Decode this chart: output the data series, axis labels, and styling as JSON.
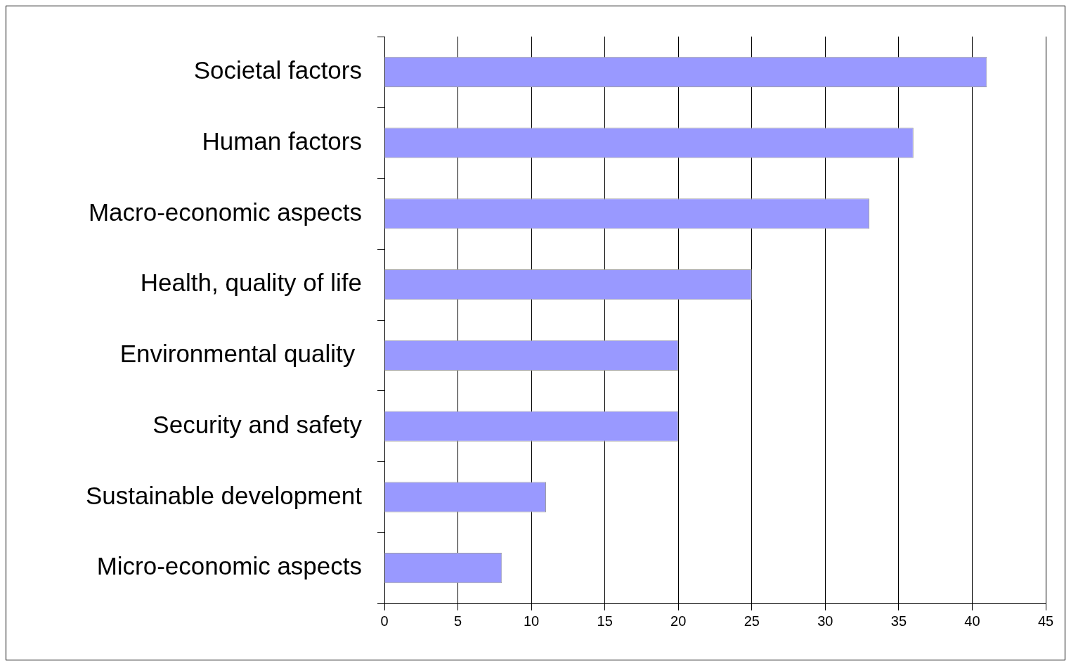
{
  "chart_data": {
    "type": "bar",
    "orientation": "horizontal",
    "categories": [
      "Societal factors",
      "Human factors",
      "Macro-economic aspects",
      "Health, quality of life",
      "Environmental quality ",
      "Security and safety",
      "Sustainable development",
      "Micro-economic aspects"
    ],
    "values": [
      41,
      36,
      33,
      25,
      20,
      20,
      11,
      8
    ],
    "color": "#9999ff",
    "xlim": [
      0,
      45
    ],
    "xticks": [
      0,
      5,
      10,
      15,
      20,
      25,
      30,
      35,
      40,
      45
    ],
    "grid": "x",
    "legend": false
  }
}
